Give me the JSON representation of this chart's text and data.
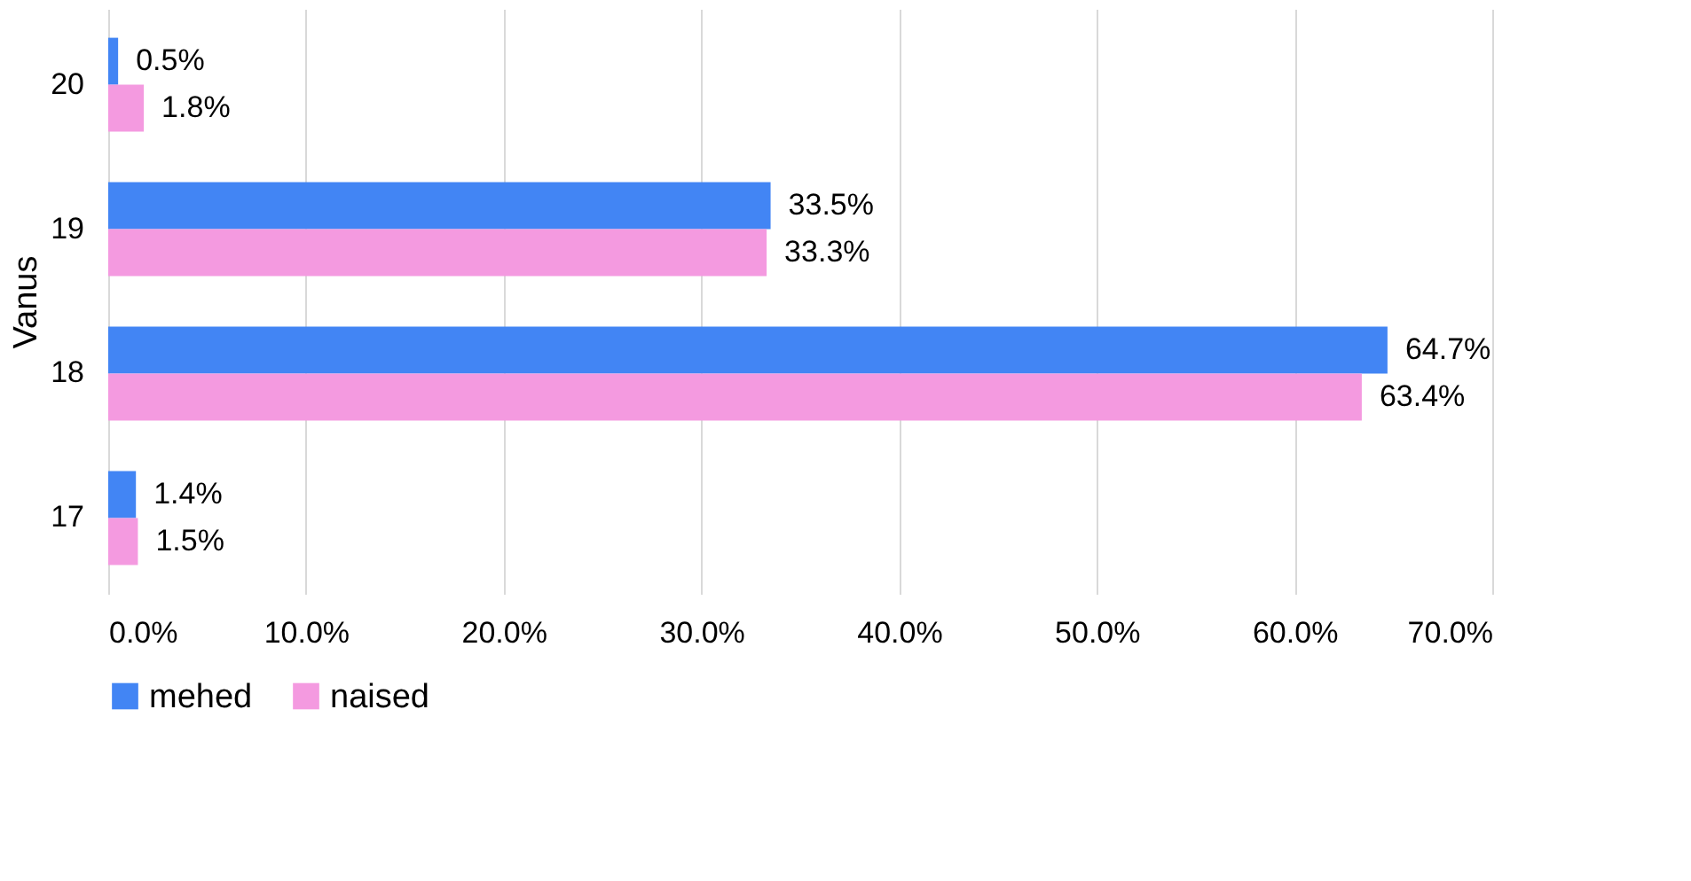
{
  "chart_data": {
    "type": "bar",
    "orientation": "horizontal",
    "ylabel": "Vanus",
    "categories": [
      "20",
      "19",
      "18",
      "17"
    ],
    "series": [
      {
        "name": "mehed",
        "color": "#4285f4",
        "values": [
          0.5,
          33.5,
          64.7,
          1.4
        ],
        "value_labels": [
          "0.5%",
          "33.5%",
          "64.7%",
          "1.4%"
        ]
      },
      {
        "name": "naised",
        "color": "#f49ae0",
        "values": [
          1.8,
          33.3,
          63.4,
          1.5
        ],
        "value_labels": [
          "1.8%",
          "33.3%",
          "63.4%",
          "1.5%"
        ]
      }
    ],
    "xlim": [
      0,
      70
    ],
    "xticks": [
      {
        "value": 0,
        "label": "0.0%"
      },
      {
        "value": 10,
        "label": "10.0%"
      },
      {
        "value": 20,
        "label": "20.0%"
      },
      {
        "value": 30,
        "label": "30.0%"
      },
      {
        "value": 40,
        "label": "40.0%"
      },
      {
        "value": 50,
        "label": "50.0%"
      },
      {
        "value": 60,
        "label": "60.0%"
      },
      {
        "value": 70,
        "label": "70.0%"
      }
    ],
    "grid": "x",
    "legend": "bottom"
  }
}
